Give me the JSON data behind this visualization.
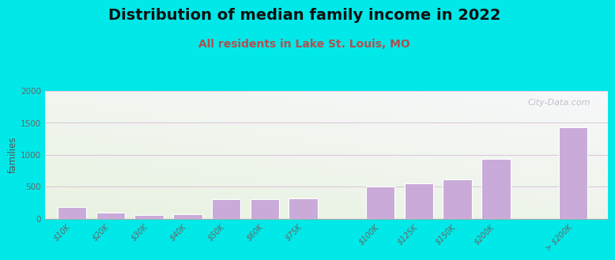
{
  "title": "Distribution of median family income in 2022",
  "subtitle": "All residents in Lake St. Louis, MO",
  "ylabel": "families",
  "categories": [
    "$10K",
    "$20K",
    "$30K",
    "$40K",
    "$50K",
    "$60K",
    "$75K",
    "$100K",
    "$125K",
    "$150K",
    "$200K",
    "> $200K"
  ],
  "values": [
    185,
    100,
    55,
    70,
    305,
    310,
    315,
    510,
    555,
    615,
    940,
    1430
  ],
  "bar_color": "#c9aad8",
  "bg_color": "#00e8e8",
  "plot_bg_colors": [
    "#eef5e8",
    "#f8faf5",
    "#f0f4f8",
    "#fafafa"
  ],
  "title_fontsize": 14,
  "subtitle_fontsize": 10,
  "subtitle_color": "#b05050",
  "ylabel_color": "#555555",
  "tick_color": "#666666",
  "ylim": [
    0,
    2000
  ],
  "yticks": [
    0,
    500,
    1000,
    1500,
    2000
  ],
  "watermark": "City-Data.com",
  "bar_gaps": [
    0,
    1,
    2,
    3,
    4,
    5,
    6,
    8,
    9,
    10,
    11,
    13
  ]
}
